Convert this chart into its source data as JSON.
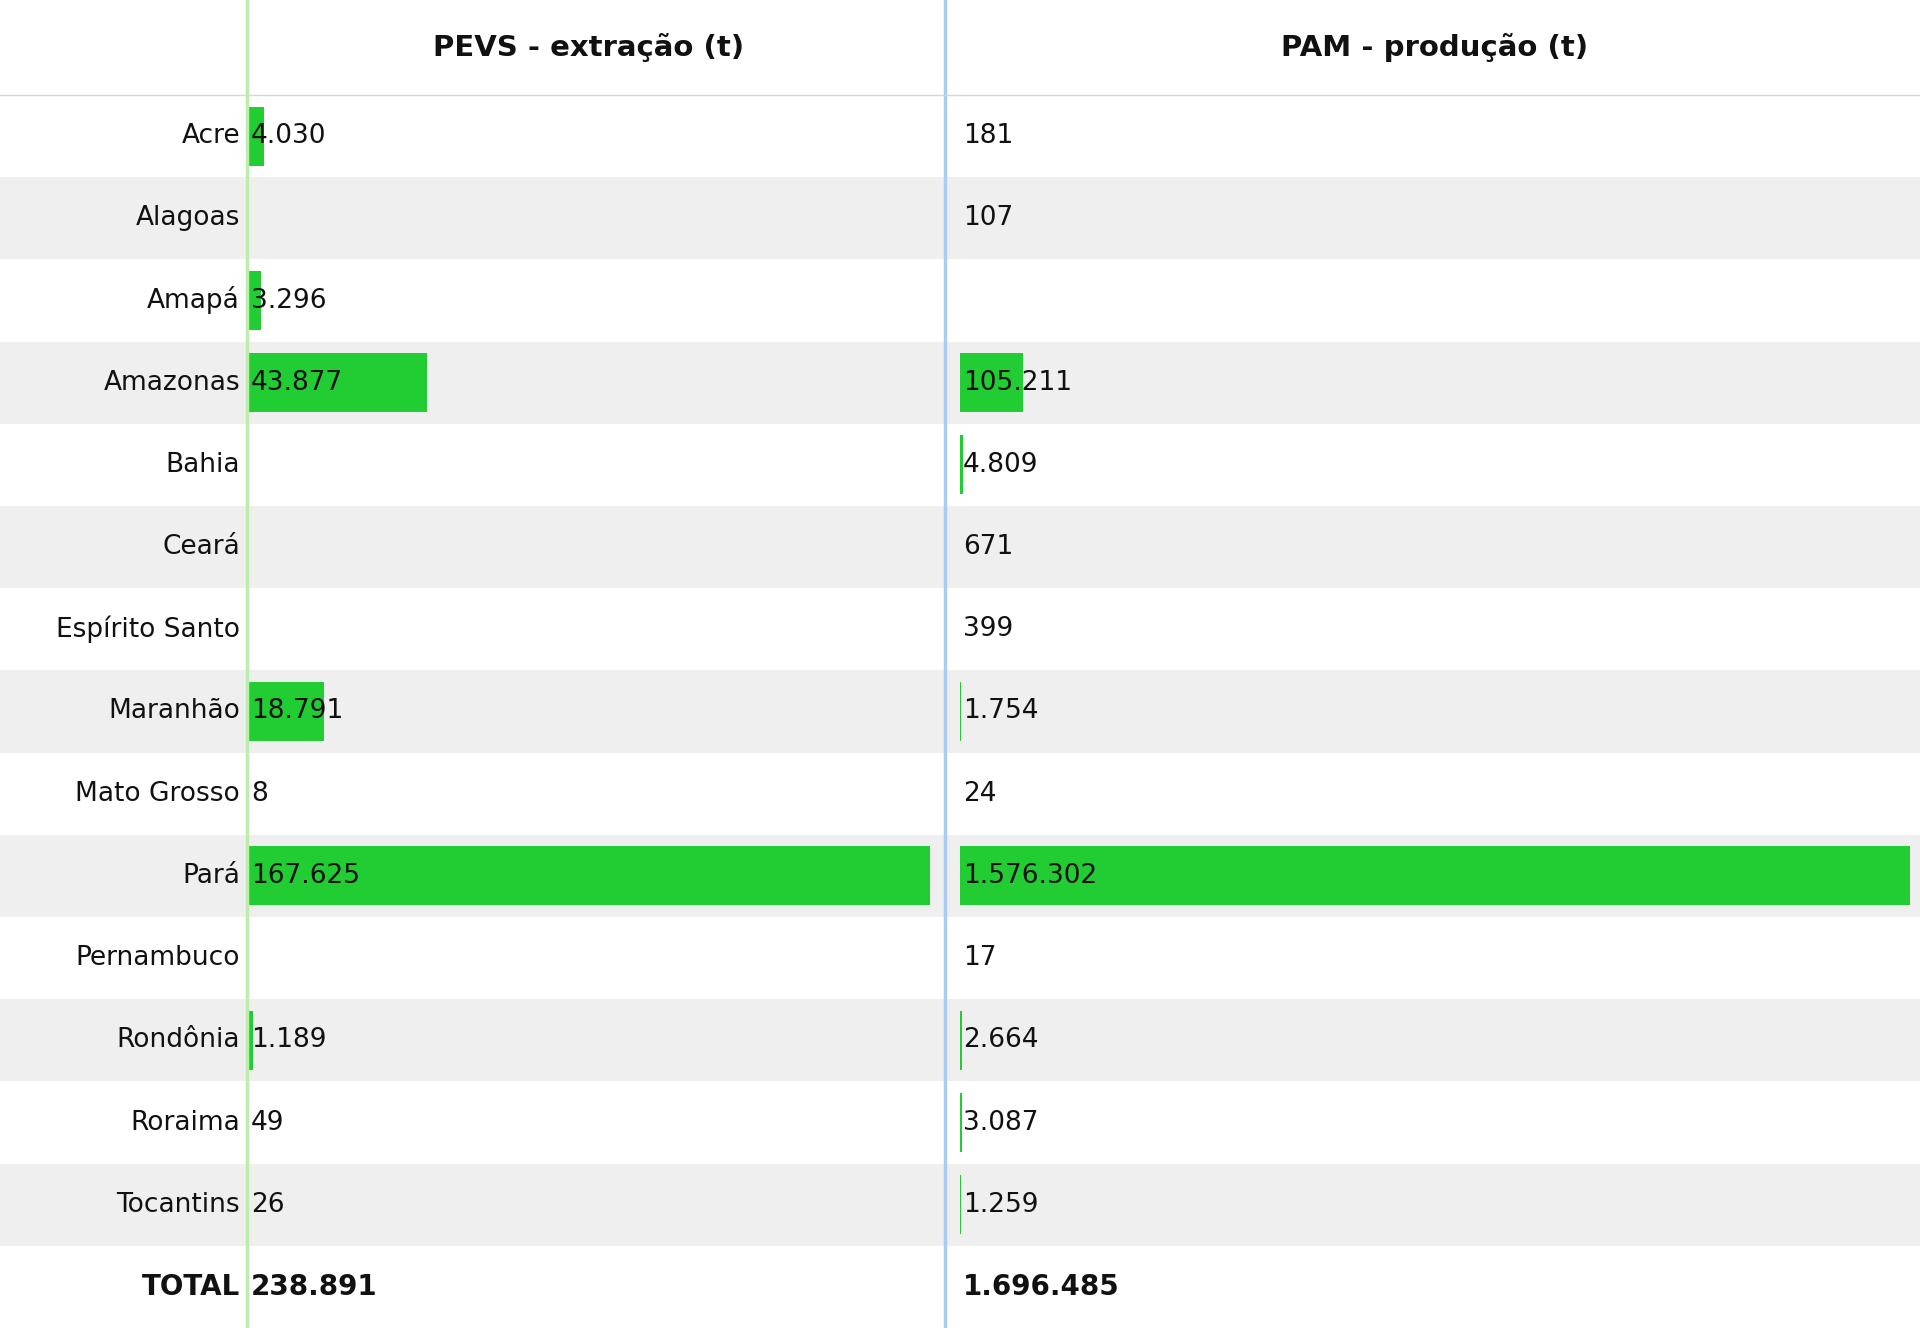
{
  "states": [
    "Acre",
    "Alagoas",
    "Amapá",
    "Amazonas",
    "Bahia",
    "Ceará",
    "Espírito Santo",
    "Maranhão",
    "Mato Grosso",
    "Pará",
    "Pernambuco",
    "Rondônia",
    "Roraima",
    "Tocantins",
    "TOTAL"
  ],
  "pevs": [
    4030,
    0,
    3296,
    43877,
    0,
    0,
    0,
    18791,
    8,
    167625,
    0,
    1189,
    49,
    26,
    238891
  ],
  "pam": [
    181,
    107,
    0,
    105211,
    4809,
    671,
    399,
    1754,
    24,
    1576302,
    17,
    2664,
    3087,
    1259,
    1696485
  ],
  "pevs_labels": [
    "4.030",
    "",
    "3.296",
    "43.877",
    "",
    "",
    "",
    "18.791",
    "8",
    "167.625",
    "",
    "1.189",
    "49",
    "26",
    "238.891"
  ],
  "pam_labels": [
    "181",
    "107",
    "",
    "105.211",
    "4.809",
    "671",
    "399",
    "1.754",
    "24",
    "1.576.302",
    "17",
    "2.664",
    "3.087",
    "1.259",
    "1.696.485"
  ],
  "col1_header": "PEVS - extração (t)",
  "col2_header": "PAM - produção (t)",
  "bg_color_odd": "#efefef",
  "bg_color_even": "#ffffff",
  "bar_color": "#22cc33",
  "divider_color_left": "#bbeeaa",
  "divider_color_right": "#aaccee",
  "text_color": "#111111",
  "bar_max_pevs": 167625,
  "bar_max_pam": 1576302,
  "header_fontsize": 21,
  "row_fontsize": 19,
  "total_fontsize": 20
}
